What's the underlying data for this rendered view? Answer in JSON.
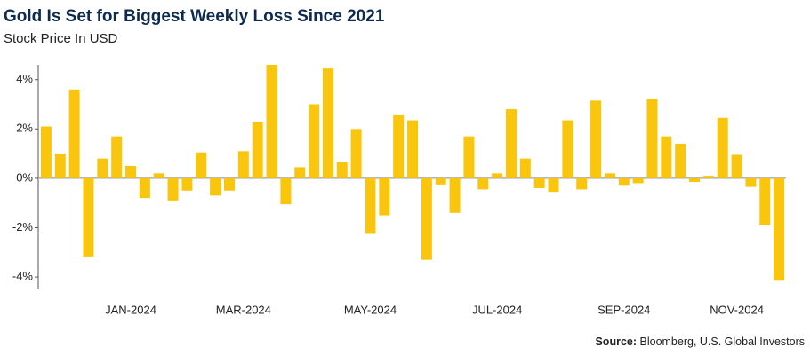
{
  "chart_data": {
    "type": "bar",
    "title": "Gold Is Set for Biggest Weekly Loss Since 2021",
    "subtitle": "Stock Price In USD",
    "source": {
      "label": "Source:",
      "text": "Bloomberg, U.S. Global Investors"
    },
    "categories": [
      null,
      null,
      null,
      null,
      null,
      null,
      "JAN-2024",
      null,
      null,
      null,
      null,
      null,
      null,
      null,
      "MAR-2024",
      null,
      null,
      null,
      null,
      null,
      null,
      null,
      null,
      "MAY-2024",
      null,
      null,
      null,
      null,
      null,
      null,
      null,
      null,
      "JUL-2024",
      null,
      null,
      null,
      null,
      null,
      null,
      null,
      null,
      "SEP-2024",
      null,
      null,
      null,
      null,
      null,
      null,
      null,
      "NOV-2024",
      null,
      null,
      null
    ],
    "values": [
      2.1,
      1.0,
      3.6,
      -3.2,
      0.8,
      1.7,
      0.5,
      -0.8,
      0.2,
      -0.9,
      -0.5,
      1.05,
      -0.7,
      -0.5,
      1.1,
      2.3,
      4.6,
      -1.05,
      0.45,
      3.0,
      4.45,
      0.65,
      2.0,
      -2.25,
      -1.5,
      2.55,
      2.35,
      -3.3,
      -0.25,
      -1.4,
      1.7,
      -0.45,
      0.2,
      2.8,
      0.8,
      -0.4,
      -0.55,
      2.35,
      -0.45,
      3.15,
      0.2,
      -0.3,
      -0.2,
      3.2,
      1.7,
      1.4,
      -0.15,
      0.1,
      2.45,
      0.95,
      -0.35,
      -1.9,
      -4.15
    ],
    "color": "#fac50d",
    "ylim": [
      -4.5,
      4.6
    ],
    "yticks": [
      {
        "value": -4,
        "label": "-4%"
      },
      {
        "value": -2,
        "label": "-2%"
      },
      {
        "value": 0,
        "label": "0%"
      },
      {
        "value": 2,
        "label": "2%"
      },
      {
        "value": 4,
        "label": "4%"
      }
    ],
    "grid": false
  }
}
